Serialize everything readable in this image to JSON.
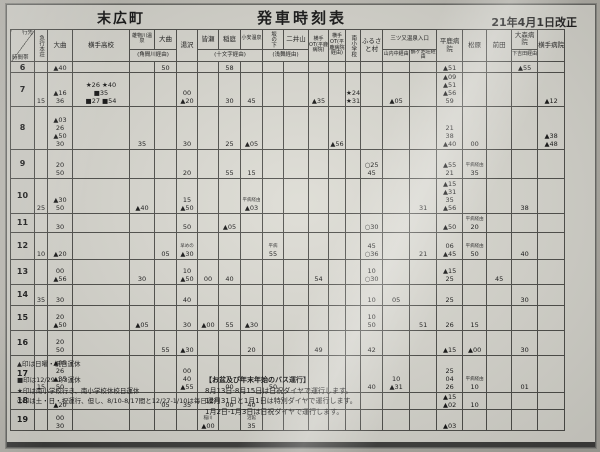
{
  "title": {
    "location": "末広町",
    "main": "発車時刻表",
    "revision": "21年4月1日改正"
  },
  "corner": {
    "top": "行先",
    "bottom": "時間帯"
  },
  "headers": {
    "honjo": "急行本荘",
    "omagari": "大曲",
    "yokote_hs": "横手高校",
    "onsen": "雄物川温泉",
    "omagari2": "大曲",
    "yuzawa": "湯沢",
    "minase": "皆瀬",
    "inaniwa": "稲庭",
    "oyasu": "小安温泉",
    "sakanoshita": "坂の下",
    "niiyama": "二井山",
    "ot1": "横手OT(平鹿病院)",
    "ot2": "横手OT(平鹿病院経由)",
    "minami": "南小学校",
    "furusato": "ふるさと村",
    "mitsumata": "三ツ又温泉入口",
    "sannai": "山内中経由",
    "tsurugaike": "鶴ヶ池荘経由",
    "hiraka": "平鹿病院",
    "matsubara": "松原",
    "maeda": "前田",
    "omori": "大森病院",
    "shimoyoshida": "下吉田経由",
    "yokote_hosp": "横手病院",
    "g_kakumagawa": "(角間川経由)",
    "g_jumonji": "(十文字経由)",
    "g_asamai": "(浅舞経由)"
  },
  "table": {
    "col_order": [
      "honjo",
      "omagari",
      "yokote_hs",
      "onsen",
      "omagari2",
      "yuzawa",
      "minase",
      "inaniwa",
      "oyasu",
      "sakanoshita",
      "niiyama",
      "ot1",
      "ot2",
      "minami",
      "furusato",
      "sannai",
      "tsurugaike",
      "hiraka",
      "matsubara",
      "maeda",
      "omori",
      "yokote_hosp"
    ],
    "rows": [
      {
        "hour": "6",
        "cells": {
          "omagari": [
            "▲40"
          ],
          "omagari2": [
            "50"
          ],
          "inaniwa": [
            "58"
          ],
          "hiraka": [
            "▲51"
          ],
          "omori": [
            "▲55"
          ]
        }
      },
      {
        "hour": "7",
        "cells": {
          "honjo": [
            "15"
          ],
          "omagari": [
            "▲16",
            "36"
          ],
          "yokote_hs": [
            "★26 ★40",
            "■35",
            "■27 ■54"
          ],
          "yuzawa": [
            "00",
            "▲20"
          ],
          "inaniwa": [
            "30"
          ],
          "oyasu": [
            "45"
          ],
          "ot1": [
            "▲35"
          ],
          "minami": [
            "★24",
            "★31"
          ],
          "sannai": [
            "▲05"
          ],
          "hiraka": [
            "▲09",
            "▲51",
            "▲56",
            "59"
          ],
          "yokote_hosp": [
            "▲12"
          ]
        }
      },
      {
        "hour": "8",
        "cells": {
          "omagari": [
            "▲03",
            "26",
            "▲50",
            "30"
          ],
          "onsen": [
            "35"
          ],
          "yuzawa": [
            "30"
          ],
          "inaniwa": [
            "25"
          ],
          "oyasu": [
            "▲05"
          ],
          "ot2": [
            "▲56"
          ],
          "hiraka": [
            "21",
            "38",
            "▲40"
          ],
          "matsubara": [
            "00"
          ],
          "yokote_hosp": [
            "▲38",
            "▲48"
          ]
        }
      },
      {
        "hour": "9",
        "cells": {
          "omagari": [
            "20",
            "50"
          ],
          "yuzawa": [
            "20"
          ],
          "inaniwa": [
            "55"
          ],
          "oyasu": [
            "15"
          ],
          "furusato": [
            "○25",
            "45"
          ],
          "hiraka": [
            "▲55",
            "21"
          ],
          "matsubara": [
            "~平病経由",
            "35"
          ]
        }
      },
      {
        "hour": "10",
        "cells": {
          "honjo": [
            "25"
          ],
          "omagari": [
            "▲30",
            "50"
          ],
          "onsen": [
            "▲40"
          ],
          "yuzawa": [
            "15",
            "▲50"
          ],
          "oyasu": [
            "~平病経由",
            "▲03"
          ],
          "tsurugaike": [
            "31"
          ],
          "hiraka": [
            "▲15",
            "▲31",
            "35",
            "▲56"
          ],
          "omori": [
            "38"
          ]
        }
      },
      {
        "hour": "11",
        "cells": {
          "omagari": [
            "30"
          ],
          "yuzawa": [
            "50"
          ],
          "inaniwa": [
            "▲05"
          ],
          "furusato": [
            "○30"
          ],
          "hiraka": [
            "▲50"
          ],
          "matsubara": [
            "~平病経由",
            "20"
          ]
        }
      },
      {
        "hour": "12",
        "cells": {
          "honjo": [
            "10"
          ],
          "omagari": [
            "▲20"
          ],
          "omagari2": [
            "05"
          ],
          "yuzawa": [
            "~早めの",
            "▲30"
          ],
          "sakanoshita": [
            "~平病",
            "55"
          ],
          "furusato": [
            "45",
            "○36"
          ],
          "tsurugaike": [
            "21"
          ],
          "hiraka": [
            "06",
            "▲45"
          ],
          "matsubara": [
            "~平病経由",
            "50"
          ],
          "omori": [
            "40"
          ]
        }
      },
      {
        "hour": "13",
        "cells": {
          "omagari": [
            "00",
            "▲56"
          ],
          "onsen": [
            "30"
          ],
          "yuzawa": [
            "10",
            "▲50"
          ],
          "minase": [
            "00"
          ],
          "inaniwa": [
            "40"
          ],
          "ot1": [
            "54"
          ],
          "furusato": [
            "10",
            "○30"
          ],
          "hiraka": [
            "▲15",
            "25"
          ],
          "maeda": [
            "45"
          ]
        }
      },
      {
        "hour": "14",
        "cells": {
          "honjo": [
            "35"
          ],
          "omagari": [
            "30"
          ],
          "yuzawa": [
            "40"
          ],
          "furusato": [
            "10"
          ],
          "sannai": [
            "05"
          ],
          "hiraka": [
            "25"
          ],
          "omori": [
            "30"
          ]
        }
      },
      {
        "hour": "15",
        "cells": {
          "omagari": [
            "20",
            "▲50"
          ],
          "onsen": [
            "▲05"
          ],
          "yuzawa": [
            "30"
          ],
          "minase": [
            "▲00"
          ],
          "inaniwa": [
            "55"
          ],
          "oyasu": [
            "▲30"
          ],
          "furusato": [
            "10",
            "50"
          ],
          "tsurugaike": [
            "51"
          ],
          "hiraka": [
            "26"
          ],
          "matsubara": [
            "15"
          ]
        }
      },
      {
        "hour": "16",
        "cells": {
          "omagari": [
            "20",
            "50"
          ],
          "omagari2": [
            "55"
          ],
          "yuzawa": [
            "▲30"
          ],
          "oyasu": [
            "20"
          ],
          "ot1": [
            "49"
          ],
          "furusato": [
            "42"
          ],
          "hiraka": [
            "▲15"
          ],
          "matsubara": [
            "▲00"
          ],
          "omori": [
            "30"
          ]
        }
      },
      {
        "hour": "17",
        "cells": {
          "honjo": [
            "15"
          ],
          "omagari": [
            "▲05",
            "26",
            "▲35",
            "50"
          ],
          "yuzawa": [
            "00",
            "40",
            "▲55"
          ],
          "inaniwa": [
            "00"
          ],
          "sakanoshita": [
            "50"
          ],
          "furusato": [
            "40"
          ],
          "sannai": [
            "10",
            "▲31"
          ],
          "hiraka": [
            "25",
            "04",
            "26"
          ],
          "matsubara": [
            "~平病経由",
            "10"
          ],
          "omori": [
            "01"
          ]
        }
      },
      {
        "hour": "18",
        "cells": {
          "omagari": [
            "▲20"
          ],
          "omagari2": [
            "05"
          ],
          "yuzawa": [
            "35"
          ],
          "inaniwa": [
            "00"
          ],
          "oyasu": [
            "40"
          ],
          "hiraka": [
            "▲15",
            "▲02"
          ],
          "matsubara": [
            "10"
          ]
        }
      },
      {
        "hour": "19",
        "cells": {
          "omagari": [
            "00",
            "30"
          ],
          "minase": [
            "~稲川",
            "▲00"
          ],
          "oyasu": [
            "~沼館",
            "35"
          ],
          "hiraka": [
            "▲03"
          ]
        }
      }
    ]
  },
  "legend": {
    "l1": "▲印は日曜・祝日運休",
    "l2": "■印は12/29-1/3運休",
    "l3": "★印は南小学校行き、南小学校休校日運休",
    "l4": "○印は土・日・祝運行、但し、8/10-8/17間と12/27-1/10は毎日運行"
  },
  "notice": {
    "title": "【お盆及び年末年始のバス運行】",
    "line1": "8月13日-8月15日は日祝ダイヤで運行します。",
    "line2": "12月31日と1月1日は特別ダイヤで運行します。",
    "line3": "1月2日-1月3日は日祝ダイヤで運行します。"
  }
}
